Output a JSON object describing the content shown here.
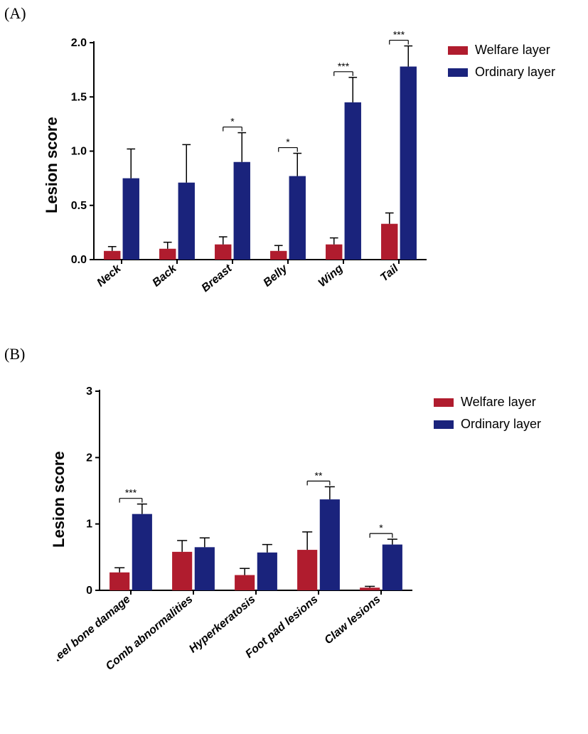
{
  "panelA": {
    "label": "(A)",
    "chart": {
      "type": "bar",
      "ylabel": "Lesion score",
      "ylim": [
        0,
        2.0
      ],
      "ytick_step": 0.5,
      "bar_colors": {
        "welfare": "#b01c2e",
        "ordinary": "#1a237c"
      },
      "axis_color": "#000000",
      "background": "#ffffff",
      "categories": [
        "Neck",
        "Back",
        "Breast",
        "Belly",
        "Wing",
        "Tail"
      ],
      "series": [
        {
          "key": "welfare",
          "label": "Welfare layer",
          "values": [
            0.08,
            0.1,
            0.14,
            0.08,
            0.14,
            0.33
          ],
          "errors": [
            0.04,
            0.06,
            0.07,
            0.05,
            0.06,
            0.1
          ]
        },
        {
          "key": "ordinary",
          "label": "Ordinary layer",
          "values": [
            0.75,
            0.71,
            0.9,
            0.77,
            1.45,
            1.78
          ],
          "errors": [
            0.27,
            0.35,
            0.27,
            0.21,
            0.23,
            0.19
          ]
        }
      ],
      "significance": [
        {
          "category": "Breast",
          "label": "*"
        },
        {
          "category": "Belly",
          "label": "*"
        },
        {
          "category": "Wing",
          "label": "***"
        },
        {
          "category": "Tail",
          "label": "***"
        }
      ],
      "tick_fontsize": 16,
      "label_fontsize": 22,
      "axis_linewidth": 2
    },
    "legend": [
      {
        "key": "welfare",
        "color": "#b01c2e",
        "label": "Welfare layer"
      },
      {
        "key": "ordinary",
        "color": "#1a237c",
        "label": "Ordinary layer"
      }
    ]
  },
  "panelB": {
    "label": "(B)",
    "chart": {
      "type": "bar",
      "ylabel": "Lesion score",
      "ylim": [
        0,
        3.0
      ],
      "ytick_step": 1.0,
      "bar_colors": {
        "welfare": "#b01c2e",
        "ordinary": "#1a237c"
      },
      "axis_color": "#000000",
      "background": "#ffffff",
      "categories": [
        "Keel bone damage",
        "Comb abnormalities",
        "Hyperkeratosis",
        "Foot pad lesions",
        "Claw lesions"
      ],
      "series": [
        {
          "key": "welfare",
          "label": "Welfare layer",
          "values": [
            0.27,
            0.58,
            0.23,
            0.61,
            0.04
          ],
          "errors": [
            0.07,
            0.17,
            0.1,
            0.27,
            0.02
          ]
        },
        {
          "key": "ordinary",
          "label": "Ordinary layer",
          "values": [
            1.15,
            0.65,
            0.57,
            1.37,
            0.69
          ],
          "errors": [
            0.15,
            0.14,
            0.12,
            0.19,
            0.08
          ]
        }
      ],
      "significance": [
        {
          "category": "Keel bone damage",
          "label": "***"
        },
        {
          "category": "Foot pad lesions",
          "label": "**"
        },
        {
          "category": "Claw lesions",
          "label": "*"
        }
      ],
      "tick_fontsize": 16,
      "label_fontsize": 22,
      "axis_linewidth": 2
    },
    "legend": [
      {
        "key": "welfare",
        "color": "#b01c2e",
        "label": "Welfare layer"
      },
      {
        "key": "ordinary",
        "color": "#1a237c",
        "label": "Ordinary layer"
      }
    ]
  }
}
